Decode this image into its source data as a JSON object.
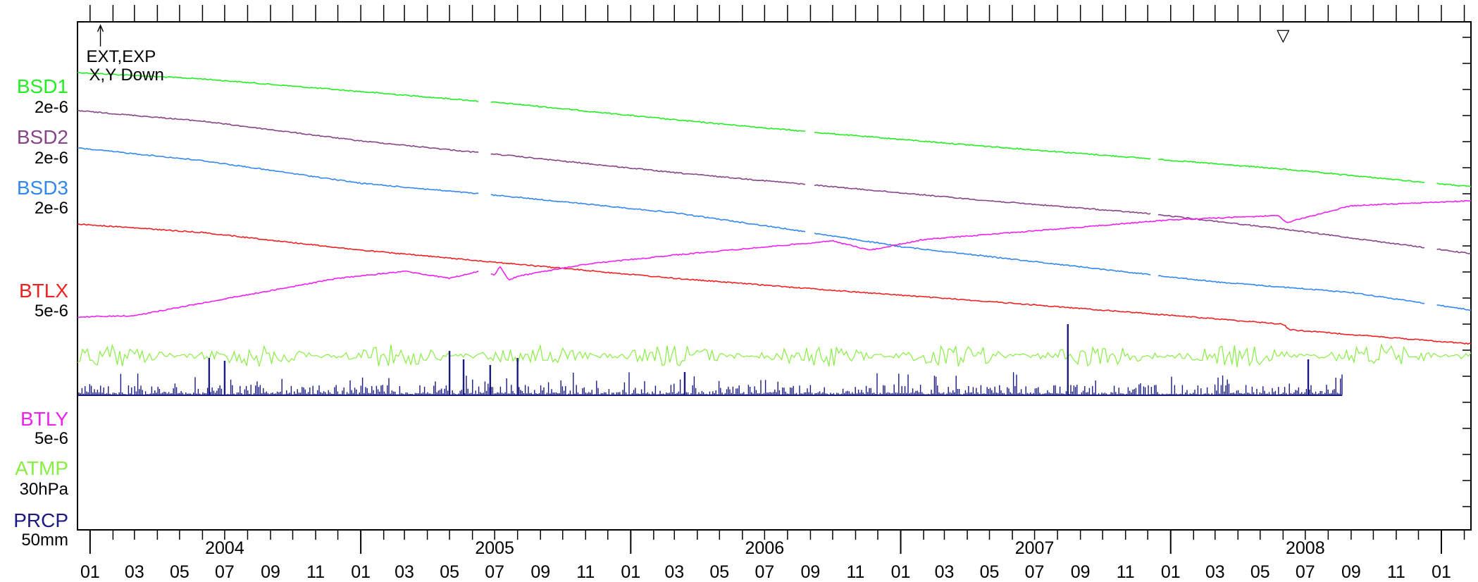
{
  "chart_data": {
    "type": "line",
    "title": "",
    "xlabel": "",
    "ylabel": "",
    "x_range": [
      "2003-12-15",
      "2009-02-10"
    ],
    "grid": false,
    "legend": "left",
    "x_year_labels": [
      "2004",
      "2005",
      "2006",
      "2007",
      "2008"
    ],
    "x_month_labels": [
      "01",
      "03",
      "05",
      "07",
      "09",
      "11",
      "01",
      "03",
      "05",
      "07",
      "09",
      "11",
      "01",
      "03",
      "05",
      "07",
      "09",
      "11",
      "01",
      "03",
      "05",
      "07",
      "09",
      "11",
      "01",
      "03",
      "05",
      "07",
      "09",
      "11",
      "01"
    ],
    "annotation": {
      "line1": "EXT,EXP",
      "line2": "X,Y Down",
      "date": "2004-01-15"
    },
    "event_marker": {
      "symbol": "▽",
      "date": "2008-06-01"
    },
    "series": [
      {
        "name": "BSD1",
        "scale_label": "2e-6",
        "color": "#22ee22",
        "kind": "line",
        "points": [
          [
            "2003-12-15",
            103
          ],
          [
            "2004-06-01",
            112
          ],
          [
            "2005-01-01",
            130
          ],
          [
            "2005-08-01",
            148
          ],
          [
            "2006-03-01",
            170
          ],
          [
            "2006-10-01",
            190
          ],
          [
            "2007-05-01",
            208
          ],
          [
            "2007-12-01",
            225
          ],
          [
            "2008-06-01",
            240
          ],
          [
            "2009-02-10",
            265
          ]
        ],
        "gaps": [
          [
            "2005-06-10",
            "2005-06-25"
          ],
          [
            "2006-08-25",
            "2006-09-05"
          ],
          [
            "2007-12-05",
            "2007-12-15"
          ],
          [
            "2008-12-10",
            "2008-12-25"
          ]
        ]
      },
      {
        "name": "BSD2",
        "scale_label": "2e-6",
        "color": "#884488",
        "kind": "line",
        "points": [
          [
            "2003-12-15",
            157
          ],
          [
            "2004-06-01",
            172
          ],
          [
            "2005-01-01",
            200
          ],
          [
            "2005-08-01",
            222
          ],
          [
            "2006-03-01",
            245
          ],
          [
            "2006-10-01",
            265
          ],
          [
            "2007-05-01",
            285
          ],
          [
            "2007-12-01",
            303
          ],
          [
            "2008-06-01",
            325
          ],
          [
            "2009-02-10",
            360
          ]
        ],
        "gaps": [
          [
            "2005-06-10",
            "2005-06-25"
          ],
          [
            "2006-08-25",
            "2006-09-05"
          ],
          [
            "2007-12-05",
            "2007-12-15"
          ],
          [
            "2008-12-10",
            "2008-12-25"
          ]
        ]
      },
      {
        "name": "BSD3",
        "scale_label": "2e-6",
        "color": "#3388ee",
        "kind": "line",
        "points": [
          [
            "2003-12-15",
            210
          ],
          [
            "2004-06-01",
            228
          ],
          [
            "2005-01-01",
            260
          ],
          [
            "2005-08-01",
            280
          ],
          [
            "2006-03-01",
            302
          ],
          [
            "2006-08-01",
            325
          ],
          [
            "2007-01-01",
            350
          ],
          [
            "2007-08-01",
            375
          ],
          [
            "2008-03-01",
            400
          ],
          [
            "2008-09-01",
            415
          ],
          [
            "2009-02-10",
            440
          ]
        ],
        "gaps": [
          [
            "2005-06-10",
            "2005-06-25"
          ],
          [
            "2006-08-25",
            "2006-09-05"
          ],
          [
            "2007-12-05",
            "2007-12-15"
          ],
          [
            "2008-12-10",
            "2008-12-25"
          ]
        ]
      },
      {
        "name": "BTLX",
        "scale_label": "5e-6",
        "color": "#ee2222",
        "kind": "line",
        "points": [
          [
            "2003-12-15",
            318
          ],
          [
            "2004-06-01",
            330
          ],
          [
            "2005-01-01",
            355
          ],
          [
            "2005-08-01",
            375
          ],
          [
            "2006-03-01",
            395
          ],
          [
            "2006-10-01",
            412
          ],
          [
            "2007-05-01",
            428
          ],
          [
            "2007-12-01",
            445
          ],
          [
            "2008-06-01",
            460
          ],
          [
            "2008-06-10",
            468
          ],
          [
            "2009-02-10",
            488
          ]
        ],
        "gaps": []
      },
      {
        "name": "BTLY",
        "scale_label": "5e-6",
        "color": "#ee22ee",
        "kind": "line",
        "points": [
          [
            "2003-12-15",
            450
          ],
          [
            "2004-03-01",
            448
          ],
          [
            "2004-06-01",
            430
          ],
          [
            "2004-12-01",
            395
          ],
          [
            "2005-03-01",
            385
          ],
          [
            "2005-05-01",
            395
          ],
          [
            "2005-06-10",
            385
          ],
          [
            "2005-07-01",
            390
          ],
          [
            "2005-07-08",
            378
          ],
          [
            "2005-07-20",
            398
          ],
          [
            "2005-08-01",
            392
          ],
          [
            "2005-11-01",
            375
          ],
          [
            "2006-03-01",
            362
          ],
          [
            "2006-10-01",
            342
          ],
          [
            "2006-11-20",
            355
          ],
          [
            "2007-02-01",
            340
          ],
          [
            "2007-08-01",
            325
          ],
          [
            "2008-01-01",
            312
          ],
          [
            "2008-05-25",
            306
          ],
          [
            "2008-06-05",
            316
          ],
          [
            "2008-09-01",
            292
          ],
          [
            "2009-02-10",
            285
          ]
        ],
        "gaps": [
          [
            "2005-06-10",
            "2005-06-25"
          ]
        ]
      },
      {
        "name": "ATMP",
        "scale_label": "30hPa",
        "color": "#88ee44",
        "kind": "noise",
        "base": 505,
        "amplitude": 16
      },
      {
        "name": "PRCP",
        "scale_label": "50mm",
        "color": "#1a1a80",
        "kind": "bars",
        "base": 560,
        "end": "2008-08-20",
        "spikes": [
          [
            "2004-06-10",
            508
          ],
          [
            "2004-07-01",
            512
          ],
          [
            "2005-05-01",
            498
          ],
          [
            "2005-05-20",
            510
          ],
          [
            "2005-06-25",
            518
          ],
          [
            "2005-08-01",
            508
          ],
          [
            "2007-08-15",
            460
          ],
          [
            "2008-07-05",
            510
          ],
          [
            "2006-03-15",
            528
          ]
        ]
      }
    ]
  }
}
